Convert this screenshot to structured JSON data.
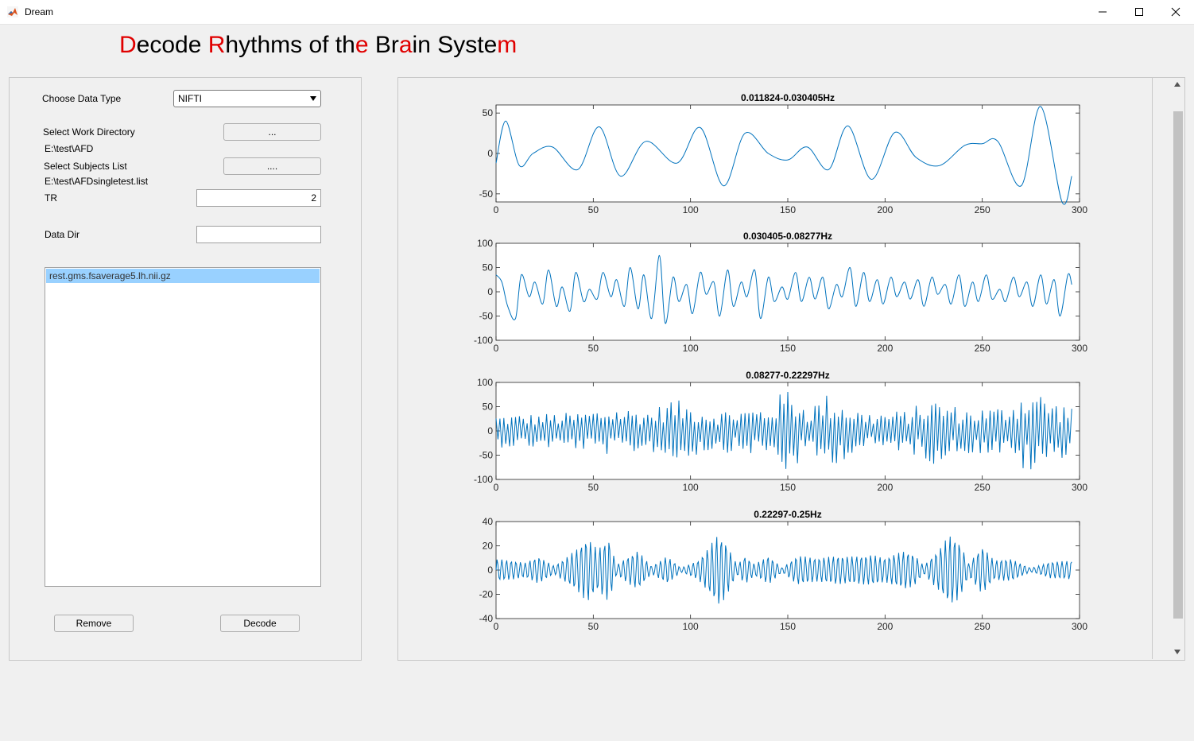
{
  "window": {
    "title": "Dream",
    "minimize_icon": "minimize-icon",
    "maximize_icon": "maximize-icon",
    "close_icon": "close-icon"
  },
  "headline": {
    "parts": [
      {
        "text": "D",
        "red": true
      },
      {
        "text": "ecode ",
        "red": false
      },
      {
        "text": "R",
        "red": true
      },
      {
        "text": "hythms of th",
        "red": false
      },
      {
        "text": "e",
        "red": true
      },
      {
        "text": " Br",
        "red": false
      },
      {
        "text": "a",
        "red": true
      },
      {
        "text": "in Syste",
        "red": false
      },
      {
        "text": "m",
        "red": true
      }
    ],
    "accent_color": "#e00000"
  },
  "left_panel": {
    "data_type_label": "Choose Data Type",
    "data_type_value": "NIFTI",
    "work_dir_label": "Select Work Directory",
    "work_dir_button": "...",
    "work_dir_path": "E:\\test\\AFD",
    "subjects_label": "Select Subjects List",
    "subjects_button": "....",
    "subjects_path": "E:\\test\\AFDsingletest.list",
    "tr_label": "TR",
    "tr_value": "2",
    "data_dir_label": "Data Dir",
    "data_dir_value": "",
    "files": [
      "rest.gms.fsaverage5.lh.nii.gz"
    ],
    "remove_button": "Remove",
    "decode_button": "Decode"
  },
  "chart_data": [
    {
      "type": "line",
      "title": "0.011824-0.030405Hz",
      "xlim": [
        0,
        300
      ],
      "ylim": [
        -60,
        60
      ],
      "xticks": [
        "0",
        "50",
        "100",
        "150",
        "200",
        "250",
        "300"
      ],
      "yticks": [
        {
          "v": 50,
          "t": "50"
        },
        {
          "v": 0,
          "t": "0"
        },
        {
          "v": -50,
          "t": "-50"
        }
      ],
      "x": [
        0,
        5,
        12,
        19,
        29,
        42,
        53,
        64,
        77,
        93,
        105,
        117,
        128,
        140,
        150,
        160,
        171,
        181,
        193,
        205,
        216,
        228,
        241,
        250,
        258,
        270,
        280,
        291,
        296
      ],
      "y": [
        -12,
        40,
        -15,
        0,
        8,
        -20,
        33,
        -28,
        15,
        -12,
        32,
        -40,
        25,
        0,
        -8,
        8,
        -20,
        34,
        -32,
        26,
        -5,
        -15,
        10,
        12,
        15,
        -40,
        58,
        -60,
        -28
      ],
      "color": "#0072bd"
    },
    {
      "type": "line",
      "title": "0.030405-0.08277Hz",
      "xlim": [
        0,
        300
      ],
      "ylim": [
        -100,
        100
      ],
      "xticks": [
        "0",
        "50",
        "100",
        "150",
        "200",
        "250",
        "300"
      ],
      "yticks": [
        {
          "v": 100,
          "t": "100"
        },
        {
          "v": 50,
          "t": "50"
        },
        {
          "v": 0,
          "t": "0"
        },
        {
          "v": -50,
          "t": "-50"
        },
        {
          "v": -100,
          "t": "-100"
        }
      ],
      "x": [
        0,
        3,
        6,
        10,
        13,
        17,
        20,
        24,
        27,
        31,
        34,
        38,
        41,
        45,
        48,
        52,
        55,
        59,
        62,
        66,
        69,
        73,
        76,
        80,
        84,
        87,
        91,
        94,
        98,
        101,
        105,
        108,
        112,
        115,
        119,
        122,
        126,
        129,
        133,
        136,
        140,
        143,
        147,
        150,
        154,
        157,
        161,
        164,
        168,
        171,
        175,
        178,
        182,
        185,
        189,
        192,
        196,
        199,
        203,
        206,
        210,
        213,
        217,
        220,
        224,
        227,
        231,
        234,
        238,
        241,
        245,
        248,
        252,
        255,
        259,
        262,
        266,
        269,
        273,
        276,
        280,
        283,
        287,
        290,
        294,
        296
      ],
      "y": [
        35,
        20,
        -30,
        -55,
        35,
        -10,
        20,
        -25,
        45,
        -30,
        10,
        -40,
        40,
        -20,
        5,
        -15,
        40,
        -10,
        25,
        -30,
        50,
        -35,
        35,
        -55,
        75,
        -65,
        30,
        -20,
        15,
        -45,
        40,
        -5,
        20,
        -50,
        45,
        -30,
        20,
        -10,
        45,
        -55,
        30,
        -20,
        10,
        -15,
        40,
        -20,
        30,
        -15,
        30,
        -35,
        15,
        -10,
        50,
        -30,
        40,
        -20,
        25,
        -25,
        30,
        -10,
        20,
        -15,
        25,
        -30,
        30,
        -5,
        15,
        -25,
        35,
        -30,
        20,
        -20,
        35,
        -15,
        5,
        -20,
        30,
        -10,
        20,
        -30,
        35,
        -25,
        25,
        -50,
        35,
        15
      ],
      "color": "#0072bd"
    },
    {
      "type": "line",
      "title": "0.08277-0.22297Hz",
      "xlim": [
        0,
        300
      ],
      "ylim": [
        -100,
        100
      ],
      "xticks": [
        "0",
        "50",
        "100",
        "150",
        "200",
        "250",
        "300"
      ],
      "yticks": [
        {
          "v": 100,
          "t": "100"
        },
        {
          "v": 50,
          "t": "50"
        },
        {
          "v": 0,
          "t": "0"
        },
        {
          "v": -50,
          "t": "-50"
        },
        {
          "v": -100,
          "t": "-100"
        }
      ],
      "amp": [
        [
          0,
          40
        ],
        [
          40,
          45
        ],
        [
          60,
          60
        ],
        [
          80,
          50
        ],
        [
          90,
          80
        ],
        [
          110,
          50
        ],
        [
          140,
          60
        ],
        [
          150,
          110
        ],
        [
          160,
          60
        ],
        [
          170,
          90
        ],
        [
          190,
          45
        ],
        [
          210,
          50
        ],
        [
          225,
          80
        ],
        [
          240,
          55
        ],
        [
          260,
          60
        ],
        [
          275,
          110
        ],
        [
          290,
          65
        ],
        [
          296,
          70
        ]
      ],
      "color": "#0072bd"
    },
    {
      "type": "line",
      "title": "0.22297-0.25Hz",
      "xlim": [
        0,
        300
      ],
      "ylim": [
        -40,
        40
      ],
      "xticks": [
        "0",
        "50",
        "100",
        "150",
        "200",
        "250",
        "300"
      ],
      "yticks": [
        {
          "v": 40,
          "t": "40"
        },
        {
          "v": 20,
          "t": "20"
        },
        {
          "v": 0,
          "t": "0"
        },
        {
          "v": -20,
          "t": "-20"
        },
        {
          "v": -40,
          "t": "-40"
        }
      ],
      "amp": [
        [
          0,
          10
        ],
        [
          15,
          6
        ],
        [
          22,
          12
        ],
        [
          30,
          4
        ],
        [
          42,
          22
        ],
        [
          47,
          30
        ],
        [
          52,
          18
        ],
        [
          58,
          26
        ],
        [
          62,
          4
        ],
        [
          73,
          18
        ],
        [
          80,
          4
        ],
        [
          88,
          14
        ],
        [
          95,
          2
        ],
        [
          104,
          8
        ],
        [
          110,
          20
        ],
        [
          114,
          30
        ],
        [
          118,
          25
        ],
        [
          124,
          5
        ],
        [
          128,
          14
        ],
        [
          133,
          6
        ],
        [
          140,
          14
        ],
        [
          147,
          2
        ],
        [
          155,
          12
        ],
        [
          165,
          10
        ],
        [
          175,
          14
        ],
        [
          185,
          14
        ],
        [
          193,
          14
        ],
        [
          200,
          10
        ],
        [
          210,
          16
        ],
        [
          215,
          14
        ],
        [
          220,
          4
        ],
        [
          228,
          22
        ],
        [
          233,
          36
        ],
        [
          238,
          28
        ],
        [
          243,
          6
        ],
        [
          250,
          20
        ],
        [
          256,
          8
        ],
        [
          265,
          10
        ],
        [
          275,
          2
        ],
        [
          285,
          8
        ],
        [
          296,
          8
        ]
      ],
      "period": 2.4,
      "color": "#0072bd"
    }
  ]
}
